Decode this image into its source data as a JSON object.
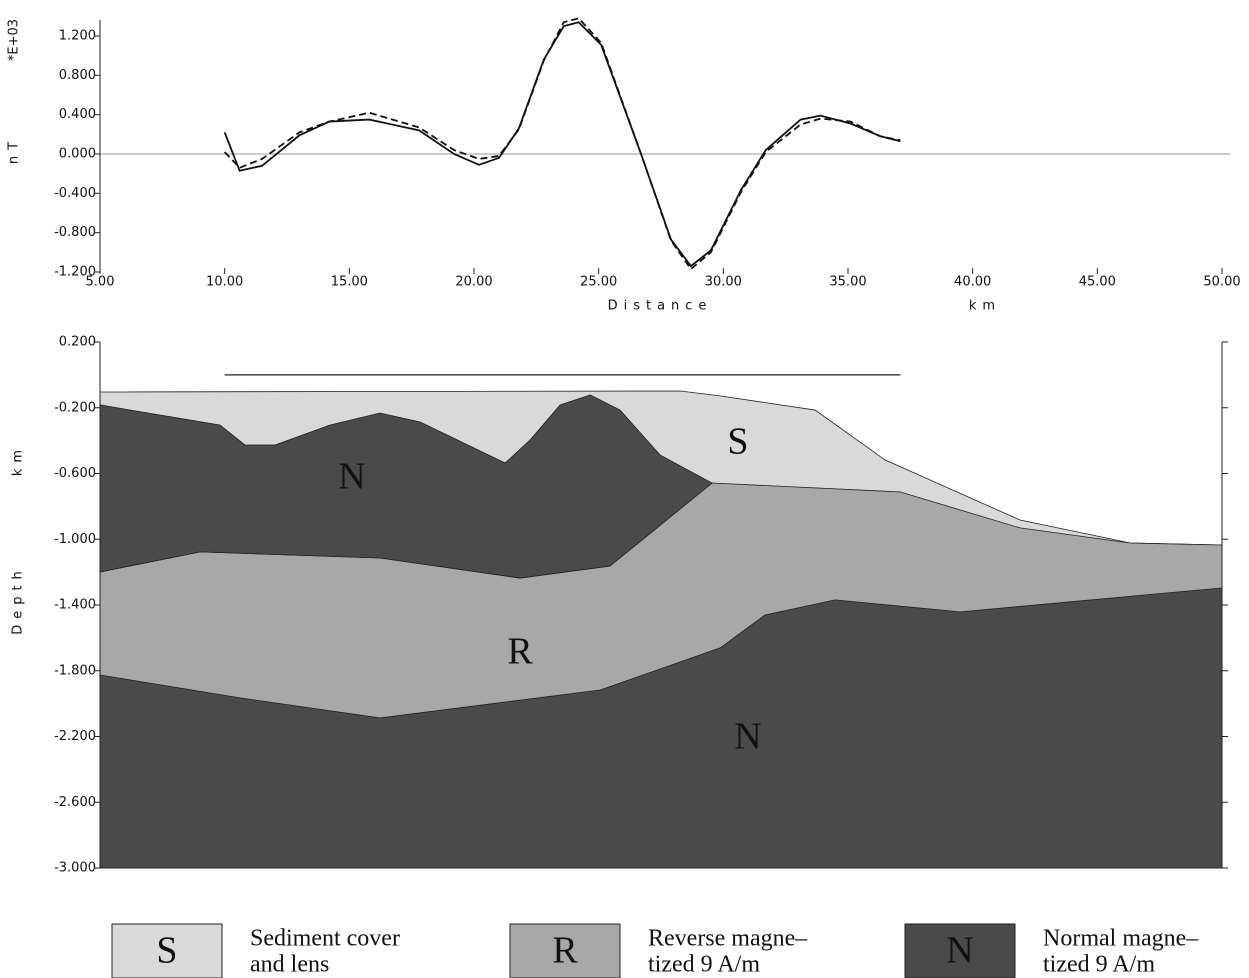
{
  "chart_data": [
    {
      "type": "line",
      "y_label": "nT",
      "y_multiplier": "*E+03",
      "x_label": "Distance",
      "x_unit": "km",
      "xlim": [
        5,
        50
      ],
      "ylim": [
        -1.2,
        1.2
      ],
      "xticks": [
        {
          "value": 5,
          "label": "5.00"
        },
        {
          "value": 10,
          "label": "10.00"
        },
        {
          "value": 15,
          "label": "15.00"
        },
        {
          "value": 20,
          "label": "20.00"
        },
        {
          "value": 25,
          "label": "25.00"
        },
        {
          "value": 30,
          "label": "30.00"
        },
        {
          "value": 35,
          "label": "35.00"
        },
        {
          "value": 40,
          "label": "40.00"
        },
        {
          "value": 45,
          "label": "45.00"
        },
        {
          "value": 50,
          "label": "50.00"
        }
      ],
      "yticks": [
        {
          "value": 1.2,
          "label": "1.200"
        },
        {
          "value": 0.8,
          "label": "0.800"
        },
        {
          "value": 0.4,
          "label": "0.400"
        },
        {
          "value": 0,
          "label": "0.000"
        },
        {
          "value": -0.4,
          "label": "-0.400"
        },
        {
          "value": -0.8,
          "label": "-0.800"
        },
        {
          "value": -1.2,
          "label": "-1.200"
        }
      ],
      "hline": 0,
      "x": [
        10.0,
        10.6,
        11.5,
        13.0,
        14.2,
        15.8,
        17.8,
        19.2,
        20.2,
        21.0,
        21.8,
        22.8,
        23.6,
        24.2,
        25.1,
        26.7,
        27.9,
        28.7,
        29.5,
        30.7,
        31.7,
        33.1,
        33.9,
        35.1,
        36.3,
        37.1
      ],
      "series": [
        {
          "color": "#111111",
          "style": "solid",
          "values": [
            0.22,
            -0.17,
            -0.12,
            0.19,
            0.33,
            0.35,
            0.24,
            0.0,
            -0.11,
            -0.04,
            0.26,
            0.96,
            1.3,
            1.34,
            1.11,
            0.0,
            -0.87,
            -1.14,
            -0.98,
            -0.37,
            0.04,
            0.35,
            0.39,
            0.31,
            0.18,
            0.13
          ]
        },
        {
          "color": "#111111",
          "style": "dashed",
          "values": [
            0.02,
            -0.14,
            -0.05,
            0.22,
            0.33,
            0.42,
            0.27,
            0.04,
            -0.05,
            -0.02,
            0.25,
            0.95,
            1.34,
            1.38,
            1.13,
            0.0,
            -0.88,
            -1.17,
            -1.0,
            -0.39,
            0.02,
            0.3,
            0.36,
            0.33,
            0.18,
            0.14
          ]
        }
      ]
    },
    {
      "type": "polygon",
      "y_label": "Depth",
      "y_unit": "km",
      "xlim": [
        5,
        50
      ],
      "ylim": [
        -3.0,
        0.2
      ],
      "yticks": [
        {
          "value": 0.2,
          "label": "0.200"
        },
        {
          "value": -0.2,
          "label": "-0.200"
        },
        {
          "value": -0.6,
          "label": "-0.600"
        },
        {
          "value": -1.0,
          "label": "-1.000"
        },
        {
          "value": -1.4,
          "label": "-1.400"
        },
        {
          "value": -1.8,
          "label": "-1.800"
        },
        {
          "value": -2.2,
          "label": "-2.200"
        },
        {
          "value": -2.6,
          "label": "-2.600"
        },
        {
          "value": -3.0,
          "label": "-3.000"
        }
      ],
      "survey_line": {
        "x": [
          10.0,
          37.1
        ],
        "y": [
          0,
          0
        ]
      },
      "bodies": [
        {
          "label": "S",
          "color": "#d9d9d9",
          "x": [
            5,
            28.27,
            29.87,
            33.68,
            36.49,
            41.9,
            46.32,
            50,
            50,
            5
          ],
          "y": [
            -0.104,
            -0.098,
            -0.128,
            -0.214,
            -0.518,
            -0.883,
            -1.023,
            -1.035,
            -3.0,
            -3.0
          ]
        },
        {
          "label": "R",
          "color": "#a8a8a8",
          "x": [
            5,
            9.01,
            16.23,
            21.85,
            25.46,
            27.06,
            29.55,
            37.09,
            41.9,
            46.32,
            50,
            50,
            5
          ],
          "y": [
            -1.199,
            -1.077,
            -1.114,
            -1.236,
            -1.163,
            -0.883,
            -0.658,
            -0.712,
            -0.931,
            -1.023,
            -1.035,
            -3.0,
            -3.0
          ]
        },
        {
          "label": "N",
          "color": "#4a4a4a",
          "x": [
            5,
            9.81,
            10.82,
            12.02,
            14.23,
            16.23,
            17.84,
            21.25,
            22.25,
            23.45,
            24.66,
            25.86,
            27.46,
            29.55,
            25.46,
            21.85,
            16.23,
            9.01,
            5
          ],
          "y": [
            -0.183,
            -0.305,
            -0.427,
            -0.427,
            -0.305,
            -0.232,
            -0.287,
            -0.536,
            -0.396,
            -0.183,
            -0.122,
            -0.214,
            -0.487,
            -0.658,
            -1.163,
            -1.236,
            -1.114,
            -1.077,
            -1.199
          ]
        },
        {
          "label": "N",
          "color": "#4a4a4a",
          "x": [
            5,
            10.62,
            16.23,
            25.06,
            29.87,
            31.67,
            34.48,
            39.5,
            50,
            50,
            5
          ],
          "y": [
            -1.826,
            -1.965,
            -2.087,
            -1.917,
            -1.661,
            -1.461,
            -1.369,
            -1.442,
            -1.296,
            -3.0,
            -3.0
          ]
        }
      ],
      "legend": [
        {
          "symbol": "S",
          "color": "#d9d9d9",
          "lines": [
            "Sediment cover",
            "and lens"
          ]
        },
        {
          "symbol": "R",
          "color": "#a8a8a8",
          "lines": [
            "Reverse magne–",
            "tized 9 A/m"
          ]
        },
        {
          "symbol": "N",
          "color": "#4a4a4a",
          "lines": [
            "Normal magne–",
            "tized 9 A/m"
          ]
        }
      ]
    }
  ]
}
